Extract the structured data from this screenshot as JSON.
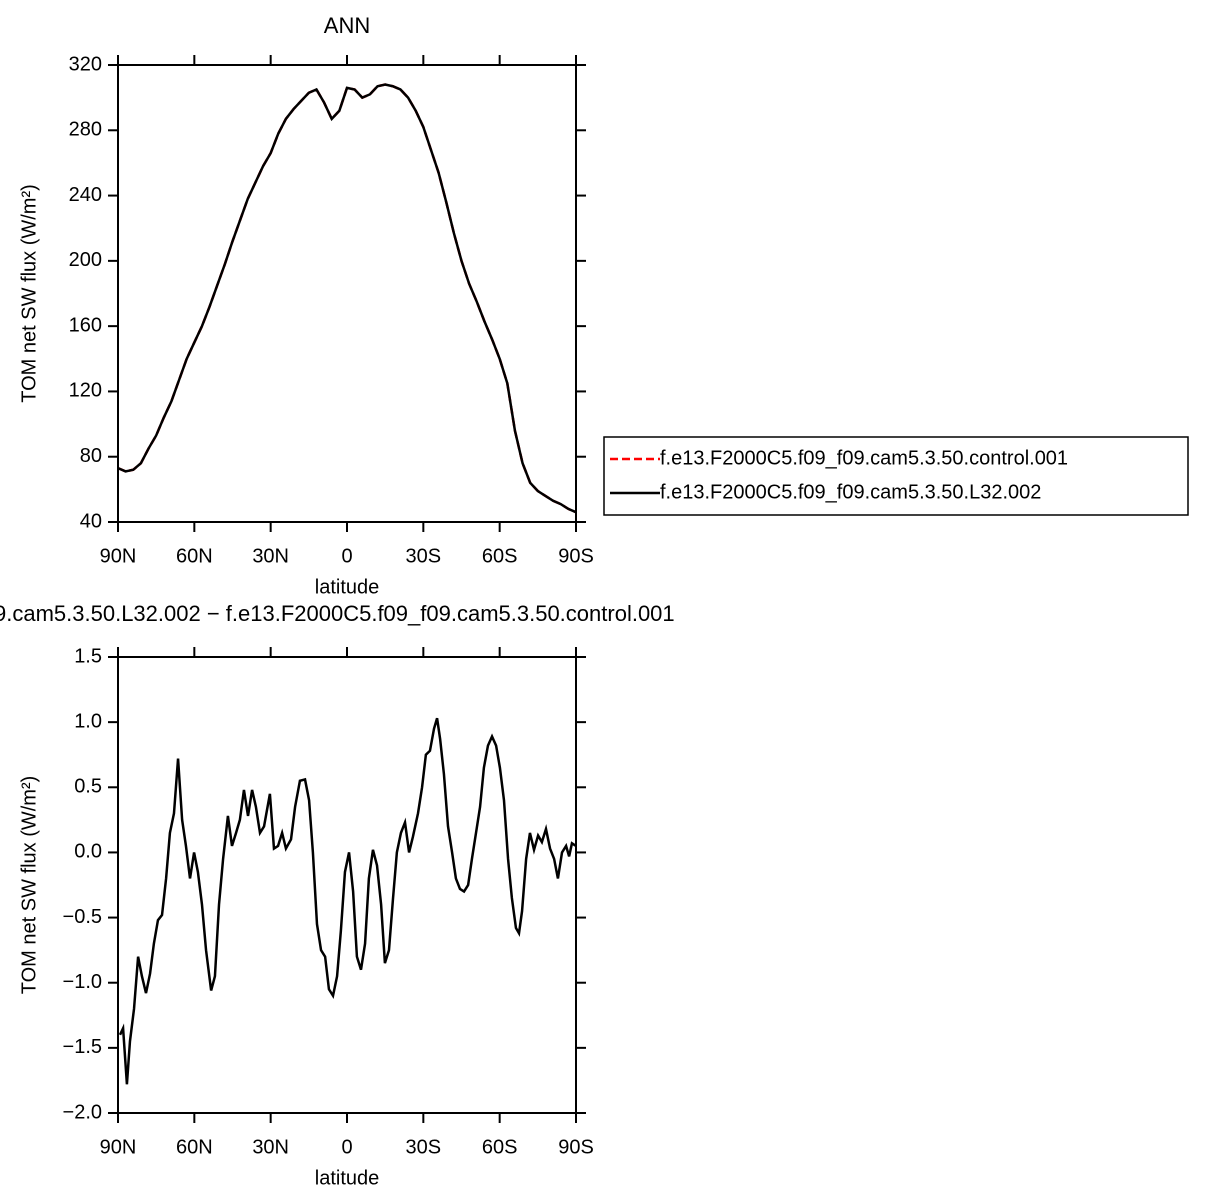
{
  "chart_data": [
    {
      "type": "line",
      "title": "ANN",
      "xlabel": "latitude",
      "ylabel": "TOM net SW flux (W/m²)",
      "x": [
        90,
        87,
        84,
        81,
        78,
        75,
        72,
        69,
        66,
        63,
        60,
        57,
        54,
        51,
        48,
        45,
        42,
        39,
        36,
        33,
        30,
        27,
        24,
        21,
        18,
        15,
        12,
        9,
        6,
        3,
        0,
        -3,
        -6,
        -9,
        -12,
        -15,
        -18,
        -21,
        -24,
        -27,
        -30,
        -33,
        -36,
        -39,
        -42,
        -45,
        -48,
        -51,
        -54,
        -57,
        -60,
        -63,
        -66,
        -69,
        -72,
        -75,
        -78,
        -81,
        -84,
        -87,
        -90
      ],
      "series": [
        {
          "name": "f.e13.F2000C5.f09_f09.cam5.3.50.control.001",
          "color": "#ff0000",
          "linestyle": "dashed",
          "values": [
            73,
            71,
            72,
            76,
            85,
            93,
            104,
            114,
            127,
            140,
            150,
            160,
            172,
            185,
            198,
            212,
            225,
            238,
            248,
            258,
            266,
            278,
            287,
            293,
            298,
            303,
            305,
            297,
            287,
            292,
            306,
            305,
            300,
            302,
            307,
            308,
            307,
            305,
            300,
            292,
            282,
            268,
            254,
            236,
            217,
            200,
            186,
            175,
            163,
            152,
            140,
            125,
            96,
            76,
            64,
            59,
            56,
            53,
            51,
            48,
            46
          ]
        },
        {
          "name": "f.e13.F2000C5.f09_f09.cam5.3.50.L32.002",
          "color": "#000000",
          "linestyle": "solid",
          "values": [
            73,
            71,
            72,
            76,
            85,
            93,
            104,
            114,
            127,
            140,
            150,
            160,
            172,
            185,
            198,
            212,
            225,
            238,
            248,
            258,
            266,
            278,
            287,
            293,
            298,
            303,
            305,
            297,
            287,
            292,
            306,
            305,
            300,
            302,
            307,
            308,
            307,
            305,
            300,
            292,
            282,
            268,
            254,
            236,
            217,
            200,
            186,
            175,
            163,
            152,
            140,
            125,
            96,
            76,
            64,
            59,
            56,
            53,
            51,
            48,
            46
          ]
        }
      ],
      "xlim": [
        90,
        -90
      ],
      "xticks": [
        {
          "value": 90,
          "label": "90N"
        },
        {
          "value": 60,
          "label": "60N"
        },
        {
          "value": 30,
          "label": "30N"
        },
        0,
        {
          "value": -30,
          "label": "30S"
        },
        {
          "value": -60,
          "label": "60S"
        },
        {
          "value": -90,
          "label": "90S"
        }
      ],
      "ylim": [
        40,
        320
      ],
      "yticks": [
        40,
        80,
        120,
        160,
        200,
        240,
        280,
        320
      ],
      "legend": "right"
    },
    {
      "type": "line",
      "title": "9.cam5.3.50.L32.002 − f.e13.F2000C5.f09_f09.cam5.3.50.control.001",
      "xlabel": "latitude",
      "ylabel": "TOM net SW flux (W/m²)",
      "x": [
        89.2,
        88.0,
        86.5,
        85.3,
        83.7,
        82.1,
        80.6,
        79.0,
        77.4,
        75.9,
        74.3,
        72.7,
        71.1,
        69.6,
        68.0,
        66.4,
        64.8,
        63.3,
        61.7,
        60.1,
        58.6,
        57.0,
        55.4,
        53.4,
        51.9,
        50.3,
        48.7,
        46.8,
        45.2,
        43.6,
        42.1,
        40.5,
        38.9,
        37.3,
        35.8,
        34.2,
        32.6,
        30.3,
        28.7,
        27.1,
        25.5,
        24.0,
        22.0,
        20.4,
        18.5,
        16.5,
        14.9,
        13.4,
        11.8,
        10.2,
        8.6,
        7.1,
        5.5,
        3.9,
        2.4,
        0.8,
        -0.8,
        -2.4,
        -3.9,
        -5.5,
        -7.1,
        -8.6,
        -10.2,
        -11.8,
        -13.4,
        -14.9,
        -16.5,
        -18.1,
        -19.6,
        -21.2,
        -22.8,
        -24.4,
        -25.9,
        -27.9,
        -29.5,
        -31.0,
        -32.6,
        -34.2,
        -35.4,
        -36.6,
        -38.1,
        -39.7,
        -41.3,
        -42.8,
        -44.4,
        -46.0,
        -47.6,
        -49.1,
        -50.7,
        -52.3,
        -53.8,
        -55.4,
        -57.0,
        -58.6,
        -60.1,
        -61.7,
        -63.3,
        -64.8,
        -66.4,
        -67.6,
        -68.8,
        -70.4,
        -71.9,
        -73.5,
        -75.1,
        -76.6,
        -78.2,
        -79.8,
        -81.4,
        -82.9,
        -84.5,
        -86.1,
        -87.3,
        -88.4,
        -90.0
      ],
      "series": [
        {
          "color": "#000000",
          "linestyle": "solid",
          "values": [
            -1.4,
            -1.35,
            -1.78,
            -1.45,
            -1.2,
            -0.8,
            -0.95,
            -1.08,
            -0.93,
            -0.7,
            -0.52,
            -0.48,
            -0.2,
            0.15,
            0.3,
            0.72,
            0.25,
            0.05,
            -0.2,
            0.0,
            -0.15,
            -0.4,
            -0.75,
            -1.06,
            -0.95,
            -0.4,
            -0.05,
            0.28,
            0.05,
            0.15,
            0.25,
            0.48,
            0.28,
            0.48,
            0.35,
            0.15,
            0.2,
            0.45,
            0.03,
            0.05,
            0.15,
            0.03,
            0.1,
            0.35,
            0.55,
            0.56,
            0.4,
            0.0,
            -0.55,
            -0.75,
            -0.8,
            -1.05,
            -1.1,
            -0.95,
            -0.6,
            -0.15,
            0.0,
            -0.3,
            -0.8,
            -0.9,
            -0.7,
            -0.2,
            0.02,
            -0.1,
            -0.4,
            -0.85,
            -0.75,
            -0.35,
            0.0,
            0.15,
            0.23,
            0.0,
            0.12,
            0.3,
            0.5,
            0.75,
            0.78,
            0.95,
            1.03,
            0.87,
            0.6,
            0.2,
            0.0,
            -0.2,
            -0.28,
            -0.3,
            -0.25,
            -0.05,
            0.15,
            0.35,
            0.65,
            0.82,
            0.89,
            0.82,
            0.65,
            0.4,
            -0.05,
            -0.35,
            -0.58,
            -0.62,
            -0.45,
            -0.05,
            0.15,
            0.02,
            0.13,
            0.08,
            0.18,
            0.03,
            -0.05,
            -0.2,
            0.0,
            0.05,
            -0.03,
            0.07,
            0.05
          ]
        }
      ],
      "xlim": [
        90,
        -90
      ],
      "xticks": [
        {
          "value": 90,
          "label": "90N"
        },
        {
          "value": 60,
          "label": "60N"
        },
        {
          "value": 30,
          "label": "30N"
        },
        0,
        {
          "value": -30,
          "label": "30S"
        },
        {
          "value": -60,
          "label": "60S"
        },
        {
          "value": -90,
          "label": "90S"
        }
      ],
      "ylim": [
        -2.0,
        1.5
      ],
      "yticks": [
        {
          "value": -2.0,
          "label": "−2.0"
        },
        {
          "value": -1.5,
          "label": "−1.5"
        },
        {
          "value": -1.0,
          "label": "−1.0"
        },
        {
          "value": -0.5,
          "label": "−0.5"
        },
        {
          "value": 0.0,
          "label": "0.0"
        },
        0.5,
        {
          "value": 1.0,
          "label": "1.0"
        },
        1.5
      ]
    }
  ]
}
